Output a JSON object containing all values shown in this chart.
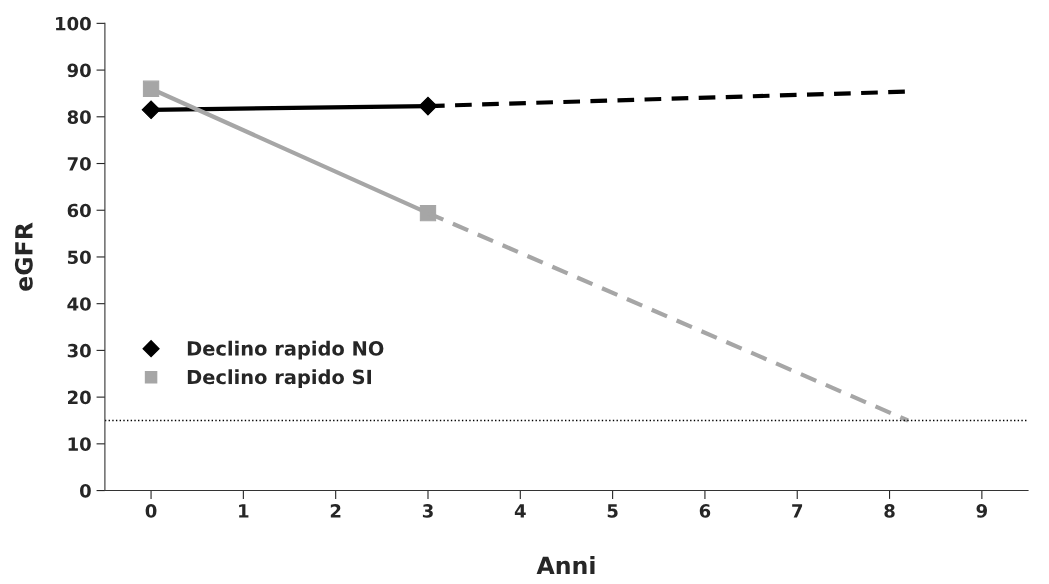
{
  "chart_data": {
    "type": "line",
    "xlabel": "Anni",
    "ylabel": "eGFR",
    "xlim": [
      -0.5,
      9.5
    ],
    "xticks": [
      0,
      1,
      2,
      3,
      4,
      5,
      6,
      7,
      8,
      9
    ],
    "ylim": [
      0,
      100
    ],
    "yticks": [
      0,
      10,
      20,
      30,
      40,
      50,
      60,
      70,
      80,
      90,
      100
    ],
    "grid": false,
    "legend": "left",
    "series": [
      {
        "name": "Declino rapido NO",
        "color": "#000000",
        "x": [
          0,
          3
        ],
        "values": [
          81.5,
          82.3
        ],
        "marker": "diamond",
        "line_style": "solid"
      },
      {
        "name": "Declino rapido SI",
        "color": "#a6a6a6",
        "x": [
          0,
          3
        ],
        "values": [
          86,
          59.4
        ],
        "marker": "square",
        "line_style": "solid"
      },
      {
        "color": "#000000",
        "x": [
          3,
          8.2
        ],
        "values": [
          82.3,
          85.4
        ],
        "marker": "none",
        "line_style": "dashed"
      },
      {
        "color": "#a6a6a6",
        "x": [
          3,
          8.2
        ],
        "values": [
          59.4,
          15
        ],
        "marker": "none",
        "line_style": "dashed"
      }
    ],
    "ref_lines": [
      {
        "axis": "y",
        "value": 15,
        "color": "#000000",
        "line_style": "dotted"
      }
    ]
  }
}
